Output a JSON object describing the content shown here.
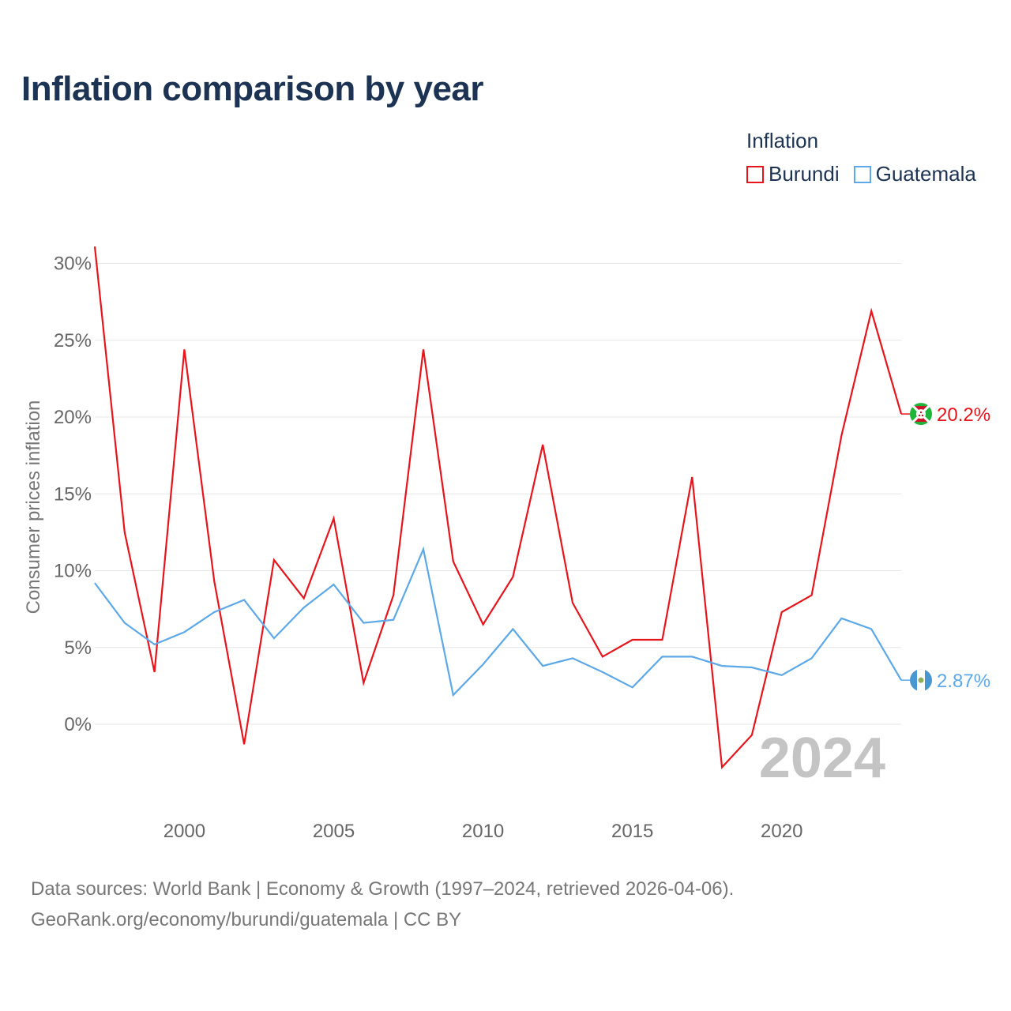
{
  "title": "Inflation comparison by year",
  "legend": {
    "title": "Inflation",
    "items": [
      {
        "label": "Burundi",
        "color": "#e8141c"
      },
      {
        "label": "Guatemala",
        "color": "#5ca8e8"
      }
    ]
  },
  "year_watermark": "2024",
  "source": {
    "line1": "Data sources: World Bank | Economy & Growth (1997–2024, retrieved 2026-04-06).",
    "line2": "GeoRank.org/economy/burundi/guatemala | CC BY"
  },
  "chart_data": {
    "type": "line",
    "title": "Inflation comparison by year",
    "xlabel": "",
    "ylabel": "Consumer prices inflation",
    "x": [
      1997,
      1998,
      1999,
      2000,
      2001,
      2002,
      2003,
      2004,
      2005,
      2006,
      2007,
      2008,
      2009,
      2010,
      2011,
      2012,
      2013,
      2014,
      2015,
      2016,
      2017,
      2018,
      2019,
      2020,
      2021,
      2022,
      2023,
      2024
    ],
    "xlim": [
      1997,
      2024
    ],
    "ylim": [
      -6,
      31
    ],
    "x_ticks": [
      2000,
      2005,
      2010,
      2015,
      2020
    ],
    "x_tick_labels": [
      "2000",
      "2005",
      "2010",
      "2015",
      "2020"
    ],
    "y_ticks": [
      0,
      5,
      10,
      15,
      20,
      25,
      30
    ],
    "y_tick_labels": [
      "0%",
      "5%",
      "10%",
      "15%",
      "20%",
      "25%",
      "30%"
    ],
    "grid": true,
    "legend_position": "top-right",
    "series": [
      {
        "name": "Burundi",
        "color": "#e8141c",
        "end_label": "20.2%",
        "values": [
          31.1,
          12.5,
          3.4,
          24.4,
          9.3,
          -1.3,
          10.7,
          8.2,
          13.4,
          2.7,
          8.4,
          24.4,
          10.6,
          6.5,
          9.6,
          18.2,
          7.9,
          4.4,
          5.5,
          5.5,
          16.1,
          -2.8,
          -0.7,
          7.3,
          8.4,
          18.8,
          26.9,
          20.2
        ]
      },
      {
        "name": "Guatemala",
        "color": "#5ca8e8",
        "end_label": "2.87%",
        "values": [
          9.2,
          6.6,
          5.2,
          6.0,
          7.3,
          8.1,
          5.6,
          7.6,
          9.1,
          6.6,
          6.8,
          11.4,
          1.9,
          3.9,
          6.2,
          3.8,
          4.3,
          3.4,
          2.4,
          4.4,
          4.4,
          3.8,
          3.7,
          3.2,
          4.3,
          6.9,
          6.2,
          2.87
        ]
      }
    ]
  }
}
